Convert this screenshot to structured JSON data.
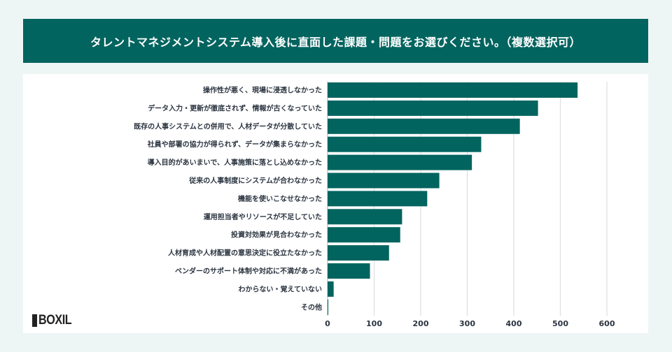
{
  "title": "タレントマネジメントシステム導入後に直面した課題・問題をお選びください。（複数選択可）",
  "logo": "BOXIL",
  "chart_data": {
    "type": "bar",
    "orientation": "horizontal",
    "categories": [
      "操作性が悪く、現場に浸透しなかった",
      "データ入力・更新が徹底されず、情報が古くなっていた",
      "既存の人事システムとの併用で、人材データが分散していた",
      "社員や部署の協力が得られず、データが集まらなかった",
      "導入目的があいまいで、人事施策に落とし込めなかった",
      "従来の人事制度にシステムが合わなかった",
      "機能を使いこなせなかった",
      "運用担当者やリソースが不足していた",
      "投資対効果が見合わなかった",
      "人材育成や人材配置の意思決定に役立たなかった",
      "ベンダーのサポート体制や対応に不満があった",
      "わからない・覚えていない",
      "その他"
    ],
    "values": [
      537,
      452,
      413,
      330,
      310,
      240,
      214,
      160,
      156,
      132,
      91,
      13,
      1
    ],
    "xlim": [
      0,
      600
    ],
    "xticks": [
      "0",
      "100",
      "200",
      "300",
      "400",
      "500",
      "600"
    ],
    "grid": true,
    "bar_color": "#02645f"
  }
}
